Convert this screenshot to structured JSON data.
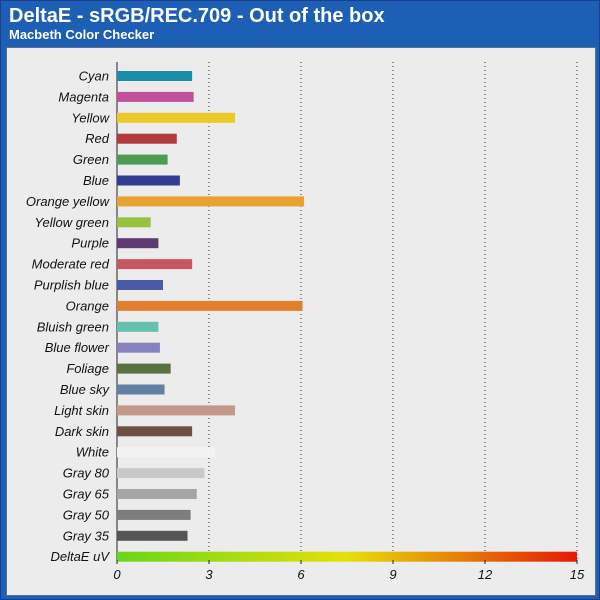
{
  "header": {
    "title": "DeltaE - sRGB/REC.709 -  Out of the box",
    "subtitle": "Macbeth Color Checker"
  },
  "chart_data": {
    "type": "bar",
    "orientation": "horizontal",
    "title": "DeltaE - sRGB/REC.709 -  Out of the box",
    "subtitle": "Macbeth Color Checker",
    "xlabel": "",
    "ylabel": "",
    "xlim": [
      0,
      15
    ],
    "ticks": [
      0,
      3,
      6,
      9,
      12,
      15
    ],
    "grid": true,
    "categories": [
      "Cyan",
      "Magenta",
      "Yellow",
      "Red",
      "Green",
      "Blue",
      "Orange yellow",
      "Yellow green",
      "Purple",
      "Moderate red",
      "Purplish blue",
      "Orange",
      "Bluish green",
      "Blue flower",
      "Foliage",
      "Blue sky",
      "Light skin",
      "Dark skin",
      "White",
      "Gray 80",
      "Gray 65",
      "Gray 50",
      "Gray 35",
      "DeltaE uV"
    ],
    "values": [
      2.45,
      2.5,
      3.85,
      1.95,
      1.65,
      2.05,
      6.1,
      1.1,
      1.35,
      2.45,
      1.5,
      6.05,
      1.35,
      1.4,
      1.75,
      1.55,
      3.85,
      2.45,
      3.2,
      2.85,
      2.6,
      2.4,
      2.3,
      15
    ],
    "colors": [
      "#1a8ea7",
      "#c0519a",
      "#ecc92a",
      "#b23a3e",
      "#4d9a52",
      "#323d91",
      "#e7a331",
      "#99c140",
      "#5e3a70",
      "#c65863",
      "#4a5aa6",
      "#e07f2e",
      "#65c0ae",
      "#8782bd",
      "#5a7241",
      "#637fa3",
      "#c3978a",
      "#6e4f45",
      "#f2f2f2",
      "#c8c8c8",
      "#a5a5a5",
      "#7d7d7d",
      "#555555",
      "gradient"
    ],
    "gradient_colors": [
      "#69d61a",
      "#e6e00a",
      "#e5180a"
    ]
  }
}
